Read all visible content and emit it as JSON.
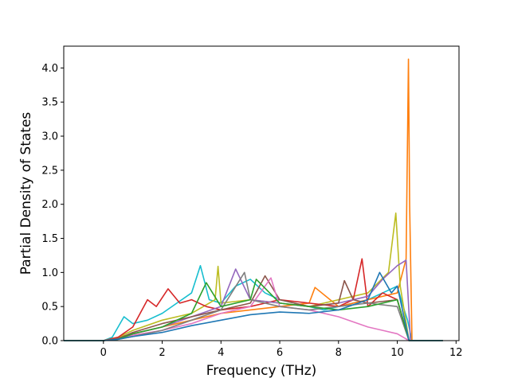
{
  "chart_data": {
    "type": "line",
    "title": "",
    "xlabel": "Frequency (THz)",
    "ylabel": "Partial Density of States",
    "xlim": [
      -1.35,
      12.1
    ],
    "ylim": [
      0.0,
      4.32
    ],
    "x_ticks": [
      0,
      2,
      4,
      6,
      8,
      10,
      12
    ],
    "y_ticks": [
      0.0,
      0.5,
      1.0,
      1.5,
      2.0,
      2.5,
      3.0,
      3.5,
      4.0
    ],
    "x_tick_labels": [
      "0",
      "2",
      "4",
      "6",
      "8",
      "10",
      "12"
    ],
    "y_tick_labels": [
      "0.0",
      "0.5",
      "1.0",
      "1.5",
      "2.0",
      "2.5",
      "3.0",
      "3.5",
      "4.0"
    ],
    "grid": false,
    "legend": "none",
    "x_range_data": [
      -1.35,
      11.55
    ],
    "series_colors": [
      "#1f77b4",
      "#ff7f0e",
      "#2ca02c",
      "#d62728",
      "#9467bd",
      "#8c564b",
      "#e377c2",
      "#7f7f7f",
      "#bcbd22",
      "#17becf"
    ],
    "series": [
      {
        "color": "#17becf",
        "x": [
          -1.35,
          0.0,
          0.3,
          0.5,
          0.7,
          1.0,
          1.5,
          2.0,
          2.5,
          3.0,
          3.3,
          3.6,
          4.0,
          4.5,
          5.0,
          5.5,
          6.0,
          6.5,
          7.0,
          7.5,
          8.0,
          8.5,
          9.0,
          9.5,
          10.0,
          10.2,
          10.35,
          10.5,
          11.55
        ],
        "y": [
          0.0,
          0.0,
          0.05,
          0.2,
          0.35,
          0.25,
          0.3,
          0.4,
          0.55,
          0.7,
          1.1,
          0.6,
          0.55,
          0.8,
          0.9,
          0.7,
          0.6,
          0.55,
          0.5,
          0.45,
          0.5,
          0.55,
          0.6,
          0.7,
          0.8,
          0.5,
          0.3,
          0.0,
          0.0
        ]
      },
      {
        "color": "#ff7f0e",
        "x": [
          -1.35,
          0.0,
          0.5,
          1.0,
          2.0,
          3.0,
          4.0,
          5.0,
          6.0,
          7.0,
          7.2,
          8.0,
          9.0,
          10.0,
          10.3,
          10.38,
          10.42,
          10.5,
          11.55
        ],
        "y": [
          0.0,
          0.0,
          0.05,
          0.1,
          0.2,
          0.3,
          0.4,
          0.45,
          0.5,
          0.55,
          0.78,
          0.5,
          0.6,
          0.7,
          1.2,
          4.13,
          2.0,
          0.0,
          0.0
        ]
      },
      {
        "color": "#bcbd22",
        "x": [
          -1.35,
          0.0,
          0.5,
          1.0,
          2.0,
          3.0,
          3.8,
          3.9,
          4.0,
          5.0,
          6.0,
          7.0,
          8.0,
          9.0,
          9.7,
          9.95,
          10.1,
          10.4,
          11.55
        ],
        "y": [
          0.0,
          0.0,
          0.05,
          0.15,
          0.3,
          0.4,
          0.6,
          1.09,
          0.55,
          0.6,
          0.55,
          0.5,
          0.6,
          0.7,
          1.0,
          1.87,
          0.8,
          0.0,
          0.0
        ]
      },
      {
        "color": "#d62728",
        "x": [
          -1.35,
          0.0,
          0.5,
          1.0,
          1.5,
          1.8,
          2.2,
          2.6,
          3.0,
          3.5,
          4.0,
          5.0,
          6.0,
          7.0,
          8.0,
          8.5,
          8.8,
          9.0,
          9.5,
          10.0,
          10.4,
          11.55
        ],
        "y": [
          0.0,
          0.0,
          0.05,
          0.2,
          0.6,
          0.5,
          0.76,
          0.55,
          0.6,
          0.5,
          0.45,
          0.5,
          0.6,
          0.55,
          0.5,
          0.6,
          1.2,
          0.5,
          0.7,
          0.6,
          0.0,
          0.0
        ]
      },
      {
        "color": "#9467bd",
        "x": [
          -1.35,
          0.0,
          0.5,
          1.0,
          2.0,
          3.0,
          4.0,
          4.5,
          5.0,
          6.0,
          7.0,
          8.0,
          9.0,
          9.5,
          10.0,
          10.3,
          10.45,
          11.55
        ],
        "y": [
          0.0,
          0.0,
          0.03,
          0.1,
          0.2,
          0.35,
          0.5,
          1.05,
          0.6,
          0.55,
          0.5,
          0.55,
          0.65,
          0.9,
          1.1,
          1.18,
          0.0,
          0.0
        ]
      },
      {
        "color": "#8c564b",
        "x": [
          -1.35,
          0.0,
          0.5,
          1.0,
          2.0,
          3.0,
          4.0,
          5.0,
          5.5,
          6.0,
          7.0,
          8.0,
          8.2,
          8.5,
          9.0,
          10.0,
          10.4,
          11.55
        ],
        "y": [
          0.0,
          0.0,
          0.03,
          0.12,
          0.25,
          0.35,
          0.45,
          0.55,
          0.95,
          0.6,
          0.5,
          0.55,
          0.88,
          0.6,
          0.55,
          0.6,
          0.0,
          0.0
        ]
      },
      {
        "color": "#e377c2",
        "x": [
          -1.35,
          0.0,
          0.5,
          1.0,
          2.0,
          3.0,
          4.0,
          5.0,
          5.7,
          6.0,
          7.0,
          8.0,
          9.0,
          9.5,
          10.0,
          10.4,
          11.55
        ],
        "y": [
          0.0,
          0.0,
          0.02,
          0.08,
          0.15,
          0.25,
          0.4,
          0.5,
          0.92,
          0.5,
          0.45,
          0.35,
          0.2,
          0.15,
          0.1,
          0.0,
          0.0
        ]
      },
      {
        "color": "#7f7f7f",
        "x": [
          -1.35,
          0.0,
          0.5,
          1.0,
          2.0,
          3.0,
          4.0,
          4.8,
          5.0,
          6.0,
          7.0,
          8.0,
          9.0,
          10.0,
          10.4,
          11.55
        ],
        "y": [
          0.0,
          0.0,
          0.02,
          0.06,
          0.15,
          0.3,
          0.45,
          1.0,
          0.6,
          0.5,
          0.45,
          0.5,
          0.55,
          0.5,
          0.0,
          0.0
        ]
      },
      {
        "color": "#2ca02c",
        "x": [
          -1.35,
          0.0,
          0.5,
          1.0,
          2.0,
          3.0,
          3.5,
          4.0,
          5.0,
          5.2,
          6.0,
          7.0,
          8.0,
          9.0,
          10.0,
          10.4,
          11.55
        ],
        "y": [
          0.0,
          0.0,
          0.02,
          0.1,
          0.2,
          0.4,
          0.85,
          0.5,
          0.6,
          0.9,
          0.55,
          0.5,
          0.45,
          0.5,
          0.6,
          0.0,
          0.0
        ]
      },
      {
        "color": "#1f77b4",
        "x": [
          -1.35,
          0.0,
          0.5,
          1.0,
          2.0,
          3.0,
          4.0,
          5.0,
          6.0,
          7.0,
          8.0,
          9.0,
          9.4,
          9.8,
          10.0,
          10.4,
          11.55
        ],
        "y": [
          0.0,
          0.0,
          0.02,
          0.06,
          0.12,
          0.22,
          0.3,
          0.38,
          0.42,
          0.4,
          0.45,
          0.6,
          1.0,
          0.7,
          0.8,
          0.0,
          0.0
        ]
      }
    ]
  }
}
